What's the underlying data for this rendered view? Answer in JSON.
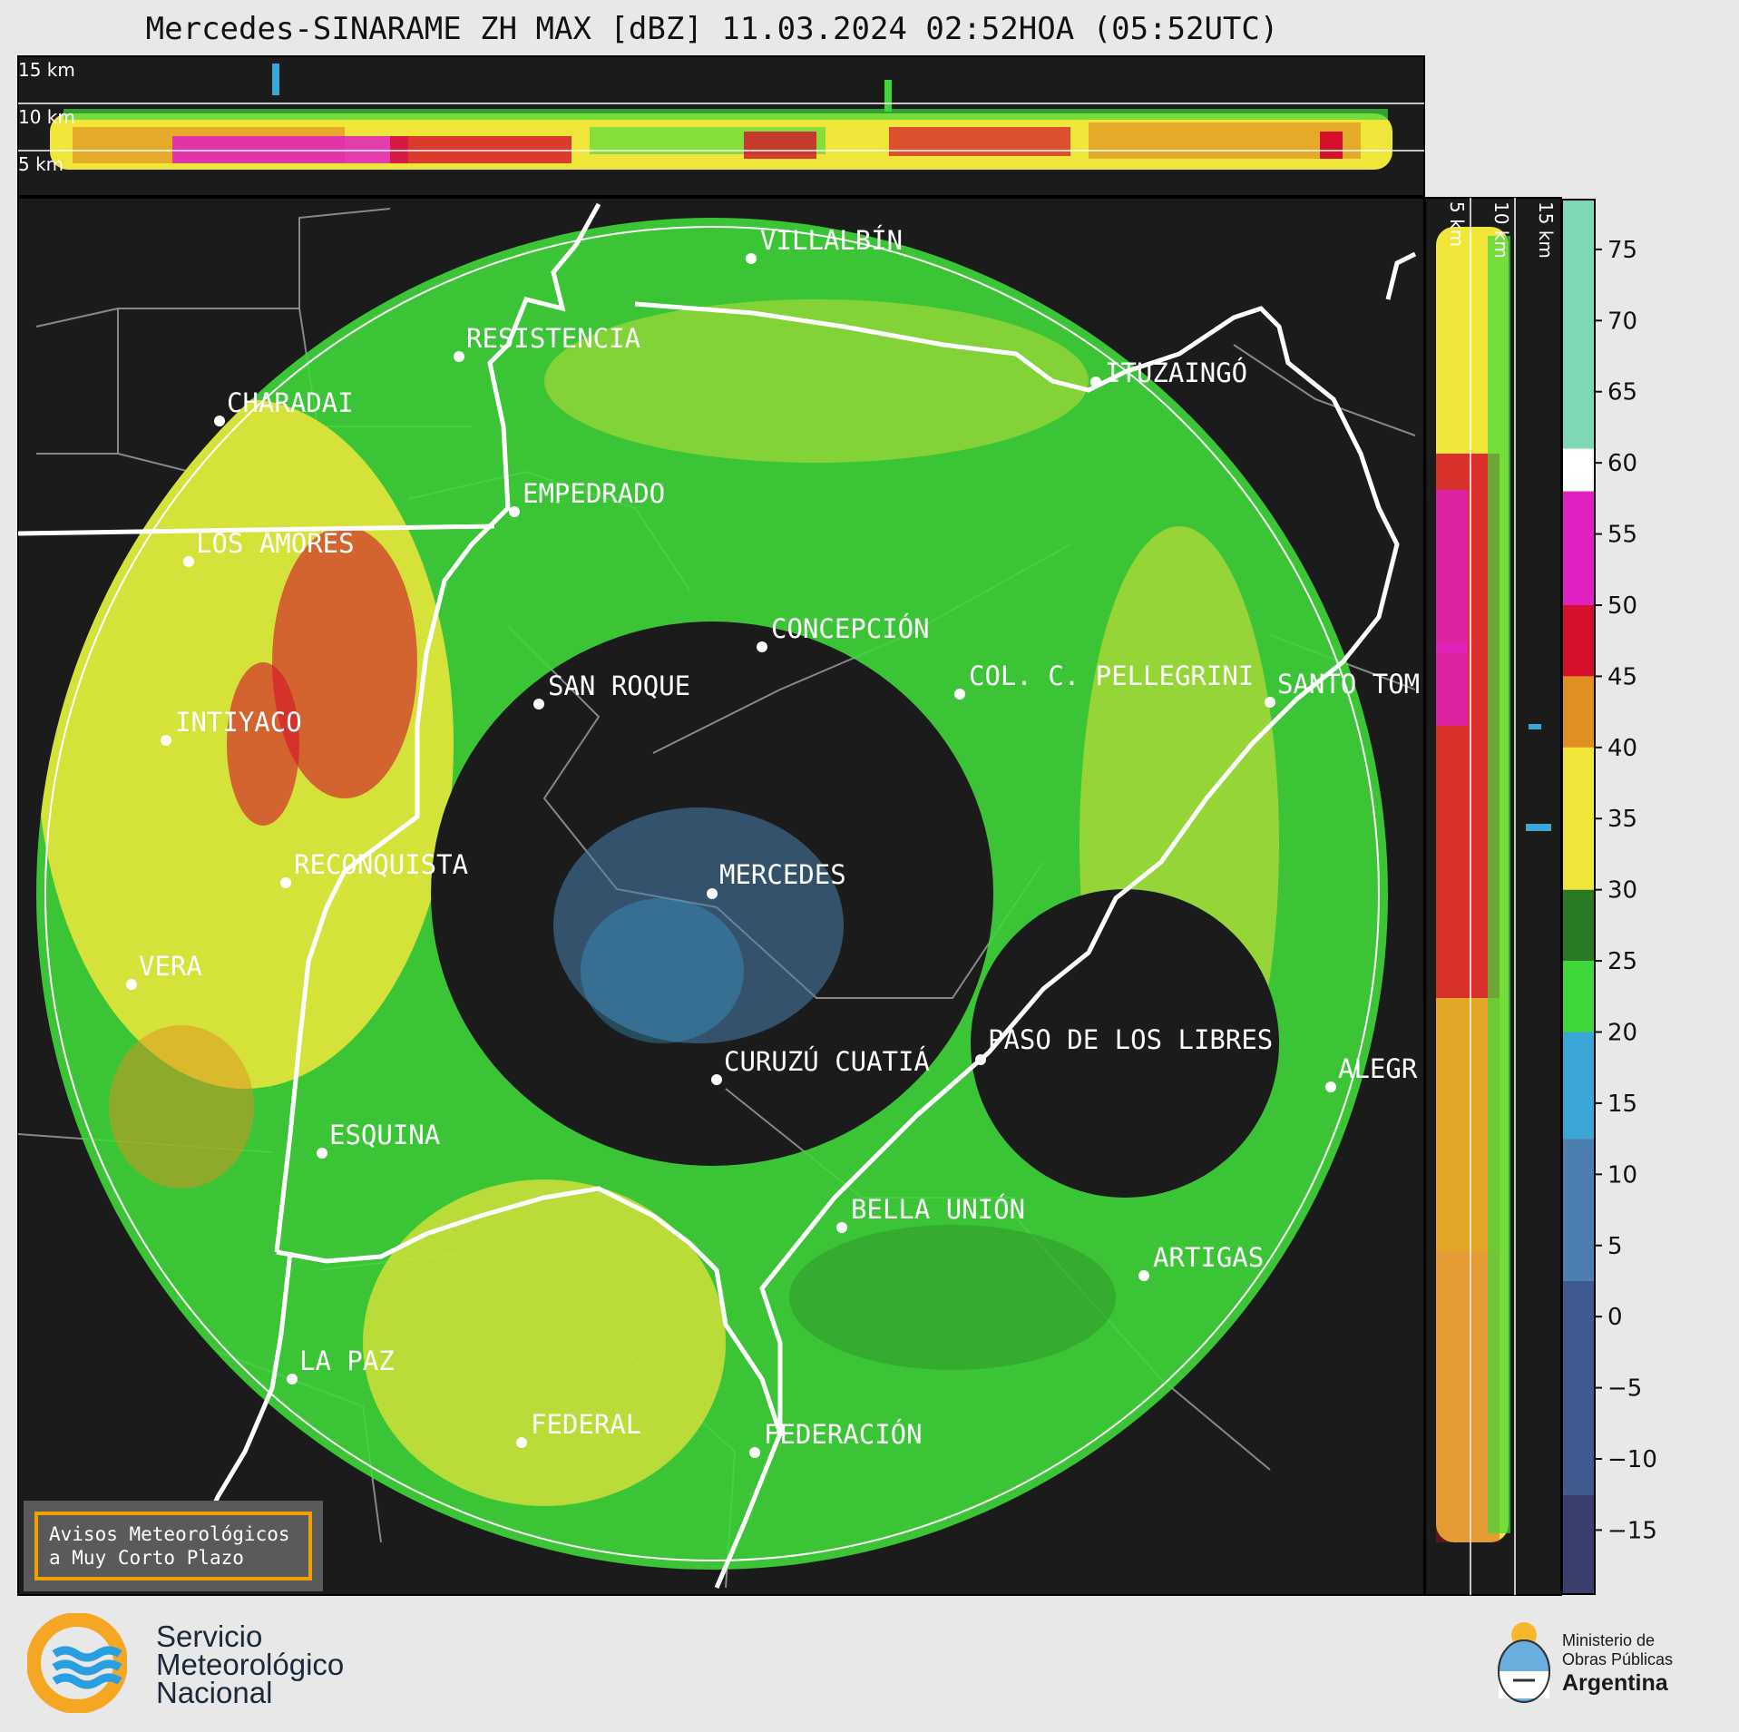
{
  "title": "Mercedes-SINARAME ZH MAX [dBZ] 11.03.2024 02:52HOA (05:52UTC)",
  "top_panel": {
    "labels": [
      "15 km",
      "10 km",
      "5 km"
    ]
  },
  "side_panel": {
    "labels": [
      "5 km",
      "10 km",
      "15 km"
    ]
  },
  "colorbar": {
    "ticks": [
      "75",
      "70",
      "65",
      "60",
      "55",
      "50",
      "45",
      "40",
      "35",
      "30",
      "25",
      "20",
      "15",
      "10",
      "5",
      "0",
      "−5",
      "−10",
      "−15"
    ],
    "colors": {
      "violet": "#3b3f6e",
      "deep_blue": "#3f5a8e",
      "blue": "#4a7fb0",
      "light_blue": "#3aa7d6",
      "green": "#3fd83a",
      "dark_green": "#2a7a25",
      "yellow": "#f0e63a",
      "orange": "#e09020",
      "red": "#d4102a",
      "magenta": "#e020c0",
      "white": "#ffffff",
      "mint": "#7fd8b4"
    }
  },
  "cities": [
    {
      "name": "VILLALBÍN"
    },
    {
      "name": "RESISTENCIA"
    },
    {
      "name": "CHARADAI"
    },
    {
      "name": "ITUZAINGÓ"
    },
    {
      "name": "EMPEDRADO"
    },
    {
      "name": "LOS AMORES"
    },
    {
      "name": "CONCEPCIÓN"
    },
    {
      "name": "SAN ROQUE"
    },
    {
      "name": "COL. C. PELLEGRINI"
    },
    {
      "name": "SANTO TOM"
    },
    {
      "name": "INTIYACO"
    },
    {
      "name": "MERCEDES"
    },
    {
      "name": "RECONQUISTA"
    },
    {
      "name": "VERA"
    },
    {
      "name": "PASO DE LOS LIBRES"
    },
    {
      "name": "CURUZÚ CUATIÁ"
    },
    {
      "name": "ALEGR"
    },
    {
      "name": "ESQUINA"
    },
    {
      "name": "BELLA UNIÓN"
    },
    {
      "name": "ARTIGAS"
    },
    {
      "name": "LA PAZ"
    },
    {
      "name": "FEDERAL"
    },
    {
      "name": "FEDERACIÓN"
    }
  ],
  "notice": {
    "line1": "Avisos Meteorológicos",
    "line2": "a Muy Corto Plazo"
  },
  "smn": {
    "line1": "Servicio",
    "line2": "Meteorológico",
    "line3": "Nacional"
  },
  "ministry": {
    "line1": "Ministerio de",
    "line2": "Obras Públicas",
    "line3": "Argentina"
  }
}
